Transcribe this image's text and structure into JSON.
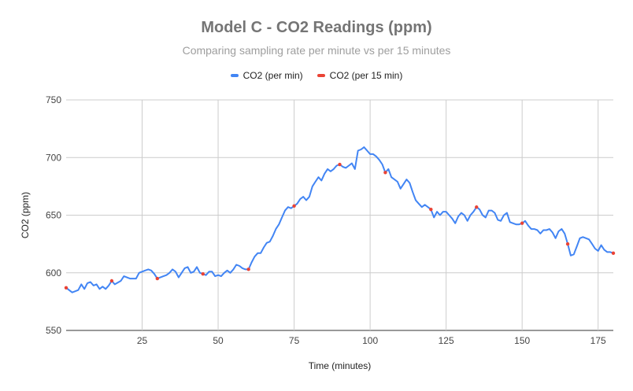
{
  "chart_data": {
    "type": "line",
    "title": "Model C - CO2 Readings (ppm)",
    "subtitle": "Comparing sampling rate per minute vs per 15 minutes",
    "xlabel": "Time (minutes)",
    "ylabel": "CO2 (ppm)",
    "xlim": [
      0,
      180
    ],
    "ylim": [
      550,
      750
    ],
    "x_ticks": [
      25,
      50,
      75,
      100,
      125,
      150,
      175
    ],
    "y_ticks": [
      550,
      600,
      650,
      700,
      750
    ],
    "grid": true,
    "legend_position": "top",
    "series": [
      {
        "name": "CO2 (per min)",
        "color": "#4285f4",
        "points": [
          [
            0,
            587
          ],
          [
            2,
            583
          ],
          [
            4,
            585
          ],
          [
            5,
            590
          ],
          [
            6,
            586
          ],
          [
            7,
            591
          ],
          [
            8,
            592
          ],
          [
            9,
            589
          ],
          [
            10,
            590
          ],
          [
            11,
            586
          ],
          [
            12,
            588
          ],
          [
            13,
            586
          ],
          [
            14,
            589
          ],
          [
            15,
            593
          ],
          [
            16,
            590
          ],
          [
            18,
            593
          ],
          [
            19,
            597
          ],
          [
            20,
            596
          ],
          [
            21,
            595
          ],
          [
            22,
            595
          ],
          [
            23,
            595
          ],
          [
            24,
            600
          ],
          [
            25,
            601
          ],
          [
            26,
            602
          ],
          [
            27,
            603
          ],
          [
            28,
            602
          ],
          [
            29,
            599
          ],
          [
            30,
            595
          ],
          [
            31,
            596
          ],
          [
            32,
            597
          ],
          [
            33,
            598
          ],
          [
            34,
            600
          ],
          [
            35,
            603
          ],
          [
            36,
            601
          ],
          [
            37,
            596
          ],
          [
            38,
            600
          ],
          [
            39,
            604
          ],
          [
            40,
            605
          ],
          [
            41,
            600
          ],
          [
            42,
            601
          ],
          [
            43,
            605
          ],
          [
            44,
            600
          ],
          [
            45,
            599
          ],
          [
            46,
            598
          ],
          [
            47,
            601
          ],
          [
            48,
            601
          ],
          [
            49,
            597
          ],
          [
            50,
            598
          ],
          [
            51,
            597
          ],
          [
            52,
            600
          ],
          [
            53,
            602
          ],
          [
            54,
            600
          ],
          [
            55,
            603
          ],
          [
            56,
            607
          ],
          [
            57,
            606
          ],
          [
            58,
            604
          ],
          [
            59,
            603
          ],
          [
            60,
            603
          ],
          [
            61,
            609
          ],
          [
            62,
            614
          ],
          [
            63,
            617
          ],
          [
            64,
            617
          ],
          [
            65,
            622
          ],
          [
            66,
            626
          ],
          [
            67,
            627
          ],
          [
            68,
            632
          ],
          [
            69,
            638
          ],
          [
            70,
            642
          ],
          [
            71,
            648
          ],
          [
            72,
            654
          ],
          [
            73,
            657
          ],
          [
            74,
            656
          ],
          [
            75,
            658
          ],
          [
            76,
            660
          ],
          [
            77,
            664
          ],
          [
            78,
            666
          ],
          [
            79,
            663
          ],
          [
            80,
            666
          ],
          [
            81,
            675
          ],
          [
            82,
            679
          ],
          [
            83,
            683
          ],
          [
            84,
            680
          ],
          [
            85,
            686
          ],
          [
            86,
            690
          ],
          [
            87,
            688
          ],
          [
            88,
            690
          ],
          [
            89,
            693
          ],
          [
            90,
            694
          ],
          [
            91,
            692
          ],
          [
            92,
            691
          ],
          [
            93,
            693
          ],
          [
            94,
            695
          ],
          [
            95,
            690
          ],
          [
            96,
            706
          ],
          [
            97,
            707
          ],
          [
            98,
            709
          ],
          [
            99,
            706
          ],
          [
            100,
            703
          ],
          [
            101,
            703
          ],
          [
            102,
            701
          ],
          [
            103,
            698
          ],
          [
            104,
            694
          ],
          [
            105,
            687
          ],
          [
            106,
            690
          ],
          [
            107,
            683
          ],
          [
            108,
            681
          ],
          [
            109,
            679
          ],
          [
            110,
            673
          ],
          [
            111,
            677
          ],
          [
            112,
            681
          ],
          [
            113,
            678
          ],
          [
            114,
            670
          ],
          [
            115,
            663
          ],
          [
            116,
            660
          ],
          [
            117,
            657
          ],
          [
            118,
            659
          ],
          [
            119,
            657
          ],
          [
            120,
            655
          ],
          [
            121,
            648
          ],
          [
            122,
            653
          ],
          [
            123,
            650
          ],
          [
            124,
            653
          ],
          [
            125,
            653
          ],
          [
            126,
            650
          ],
          [
            127,
            647
          ],
          [
            128,
            643
          ],
          [
            129,
            649
          ],
          [
            130,
            652
          ],
          [
            131,
            650
          ],
          [
            132,
            645
          ],
          [
            133,
            650
          ],
          [
            134,
            653
          ],
          [
            135,
            657
          ],
          [
            136,
            655
          ],
          [
            137,
            650
          ],
          [
            138,
            648
          ],
          [
            139,
            654
          ],
          [
            140,
            654
          ],
          [
            141,
            652
          ],
          [
            142,
            646
          ],
          [
            143,
            645
          ],
          [
            144,
            650
          ],
          [
            145,
            652
          ],
          [
            146,
            644
          ],
          [
            147,
            643
          ],
          [
            148,
            642
          ],
          [
            149,
            642
          ],
          [
            150,
            643
          ],
          [
            151,
            645
          ],
          [
            152,
            641
          ],
          [
            153,
            638
          ],
          [
            154,
            638
          ],
          [
            155,
            637
          ],
          [
            156,
            634
          ],
          [
            157,
            637
          ],
          [
            158,
            637
          ],
          [
            159,
            638
          ],
          [
            160,
            635
          ],
          [
            161,
            630
          ],
          [
            162,
            636
          ],
          [
            163,
            638
          ],
          [
            164,
            634
          ],
          [
            165,
            625
          ],
          [
            166,
            615
          ],
          [
            167,
            616
          ],
          [
            168,
            623
          ],
          [
            169,
            630
          ],
          [
            170,
            631
          ],
          [
            171,
            630
          ],
          [
            172,
            629
          ],
          [
            173,
            625
          ],
          [
            174,
            621
          ],
          [
            175,
            619
          ],
          [
            176,
            624
          ],
          [
            177,
            620
          ],
          [
            178,
            618
          ],
          [
            179,
            618
          ],
          [
            180,
            617
          ]
        ]
      },
      {
        "name": "CO2 (per 15 min)",
        "color": "#ea4335",
        "points": [
          [
            0,
            587
          ],
          [
            15,
            593
          ],
          [
            30,
            595
          ],
          [
            45,
            599
          ],
          [
            60,
            603
          ],
          [
            75,
            658
          ],
          [
            90,
            694
          ],
          [
            105,
            687
          ],
          [
            120,
            655
          ],
          [
            135,
            657
          ],
          [
            150,
            643
          ],
          [
            165,
            625
          ],
          [
            180,
            617
          ]
        ]
      }
    ]
  }
}
